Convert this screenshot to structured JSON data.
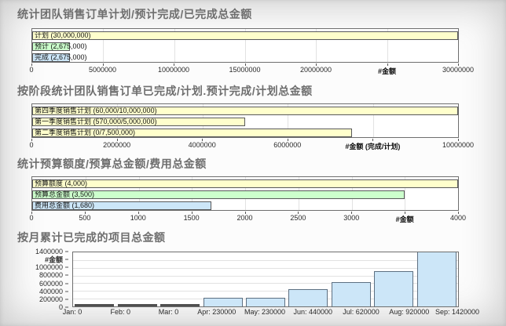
{
  "page": {
    "background": "#fcfcfc"
  },
  "colors": {
    "bar_yellow": "#ffffcc",
    "bar_green": "#ccffcc",
    "bar_blue": "#cce6f8",
    "zero_bar": "#4f4f4f",
    "title_text": "#6e6e6e"
  },
  "chart_data": [
    {
      "type": "bar-horizontal",
      "title": "统计团队销售订单计划/预计完成/已完成总金额",
      "xlim": [
        0,
        30000000
      ],
      "x_ticks": [
        "0",
        "5000000",
        "10000000",
        "15000000",
        "20000000",
        "#金额",
        "30000000"
      ],
      "x_axis_label": "#金额",
      "grid": true,
      "bars": [
        {
          "name": "计划",
          "label": "计划 (30,000,000)",
          "value": 30000000,
          "color": "#ffffcc"
        },
        {
          "name": "预计",
          "label": "预计 (2,675,000)",
          "value": 2675000,
          "color": "#ccffcc"
        },
        {
          "name": "完成",
          "label": "完成 (2,675,000)",
          "value": 2675000,
          "color": "#cce6f8"
        }
      ]
    },
    {
      "type": "bar-horizontal",
      "title": "按阶段统计团队销售订单已完成/计划.预计完成/计划总金额",
      "xlim": [
        0,
        10000000
      ],
      "x_ticks": [
        "0",
        "2000000",
        "4000000",
        "6000000",
        "#金额 (完成/计划)",
        "10000000"
      ],
      "x_axis_label": "#金额 (完成/计划)",
      "grid": true,
      "bars": [
        {
          "name": "第四季度销售计划",
          "label": "第四季度销售计划 (60,000/10,000,000)",
          "value": 10000000,
          "color": "#ffffcc"
        },
        {
          "name": "第一季度销售计划",
          "label": "第一季度销售计划 (570,000/5,000,000)",
          "value": 5000000,
          "color": "#ffffcc"
        },
        {
          "name": "第二季度销售计划",
          "label": "第二季度销售计划 (0/7,500,000)",
          "value": 7500000,
          "color": "#ffffcc"
        }
      ]
    },
    {
      "type": "bar-horizontal",
      "title": "统计预算额度/预算总金额/费用总金额",
      "xlim": [
        0,
        4000
      ],
      "x_ticks": [
        "0",
        "500",
        "1000",
        "1500",
        "2000",
        "2500",
        "3000",
        "#金额",
        "4000"
      ],
      "x_axis_label": "#金额",
      "grid": true,
      "bars": [
        {
          "name": "预算额度",
          "label": "预算额度 (4,000)",
          "value": 4000,
          "color": "#ffffcc"
        },
        {
          "name": "预算总金额",
          "label": "预算总金额 (3,500)",
          "value": 3500,
          "color": "#ccffcc"
        },
        {
          "name": "费用总金额",
          "label": "费用总金额 (1,680)",
          "value": 1680,
          "color": "#cce6f8"
        }
      ]
    },
    {
      "type": "bar-vertical",
      "title": "按月累计已完成的项目总金额",
      "ylim": [
        0,
        1400000
      ],
      "y_ticks": [
        "1400000",
        "#金额",
        "1000000",
        "800000",
        "600000",
        "400000",
        "200000",
        "0"
      ],
      "y_axis_label": "#金额",
      "grid": true,
      "categories": [
        "Jan: 0",
        "Feb: 0",
        "Mar: 0",
        "Apr: 230000",
        "May: 230000",
        "Jun: 440000",
        "Jul: 620000",
        "Aug: 920000",
        "Sep: 1420000"
      ],
      "values": [
        0,
        0,
        0,
        230000,
        230000,
        440000,
        620000,
        920000,
        1420000
      ],
      "bar_color": "#cce6f8",
      "zero_bar_color": "#4f4f4f"
    }
  ]
}
